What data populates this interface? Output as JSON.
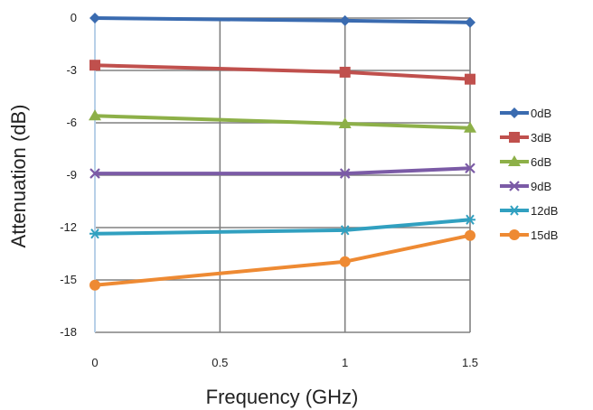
{
  "chart_data": {
    "type": "line",
    "xlabel": "Frequency (GHz)",
    "ylabel": "Attenuation (dB)",
    "xlim": [
      0,
      1.5
    ],
    "ylim": [
      -18,
      0
    ],
    "xticks": [
      "0",
      "0.5",
      "1",
      "1.5"
    ],
    "yticks": [
      "0",
      "-3",
      "-6",
      "-9",
      "-12",
      "-15",
      "-18"
    ],
    "grid": true,
    "legend_position": "right",
    "x": [
      0,
      1,
      1.5
    ],
    "series": [
      {
        "name": "0dB",
        "values": [
          0,
          -0.15,
          -0.25
        ],
        "color": "#3a6bb0",
        "marker": "diamond"
      },
      {
        "name": "3dB",
        "values": [
          -2.7,
          -3.1,
          -3.5
        ],
        "color": "#c0504d",
        "marker": "square"
      },
      {
        "name": "6dB",
        "values": [
          -5.6,
          -6.05,
          -6.3
        ],
        "color": "#8db048",
        "marker": "triangle"
      },
      {
        "name": "9dB",
        "values": [
          -8.9,
          -8.9,
          -8.6
        ],
        "color": "#7b5ba6",
        "marker": "x"
      },
      {
        "name": "12dB",
        "values": [
          -12.35,
          -12.15,
          -11.55
        ],
        "color": "#31a0c0",
        "marker": "star"
      },
      {
        "name": "15dB",
        "values": [
          -15.3,
          -13.95,
          -12.45
        ],
        "color": "#ee8a33",
        "marker": "circle"
      }
    ]
  }
}
